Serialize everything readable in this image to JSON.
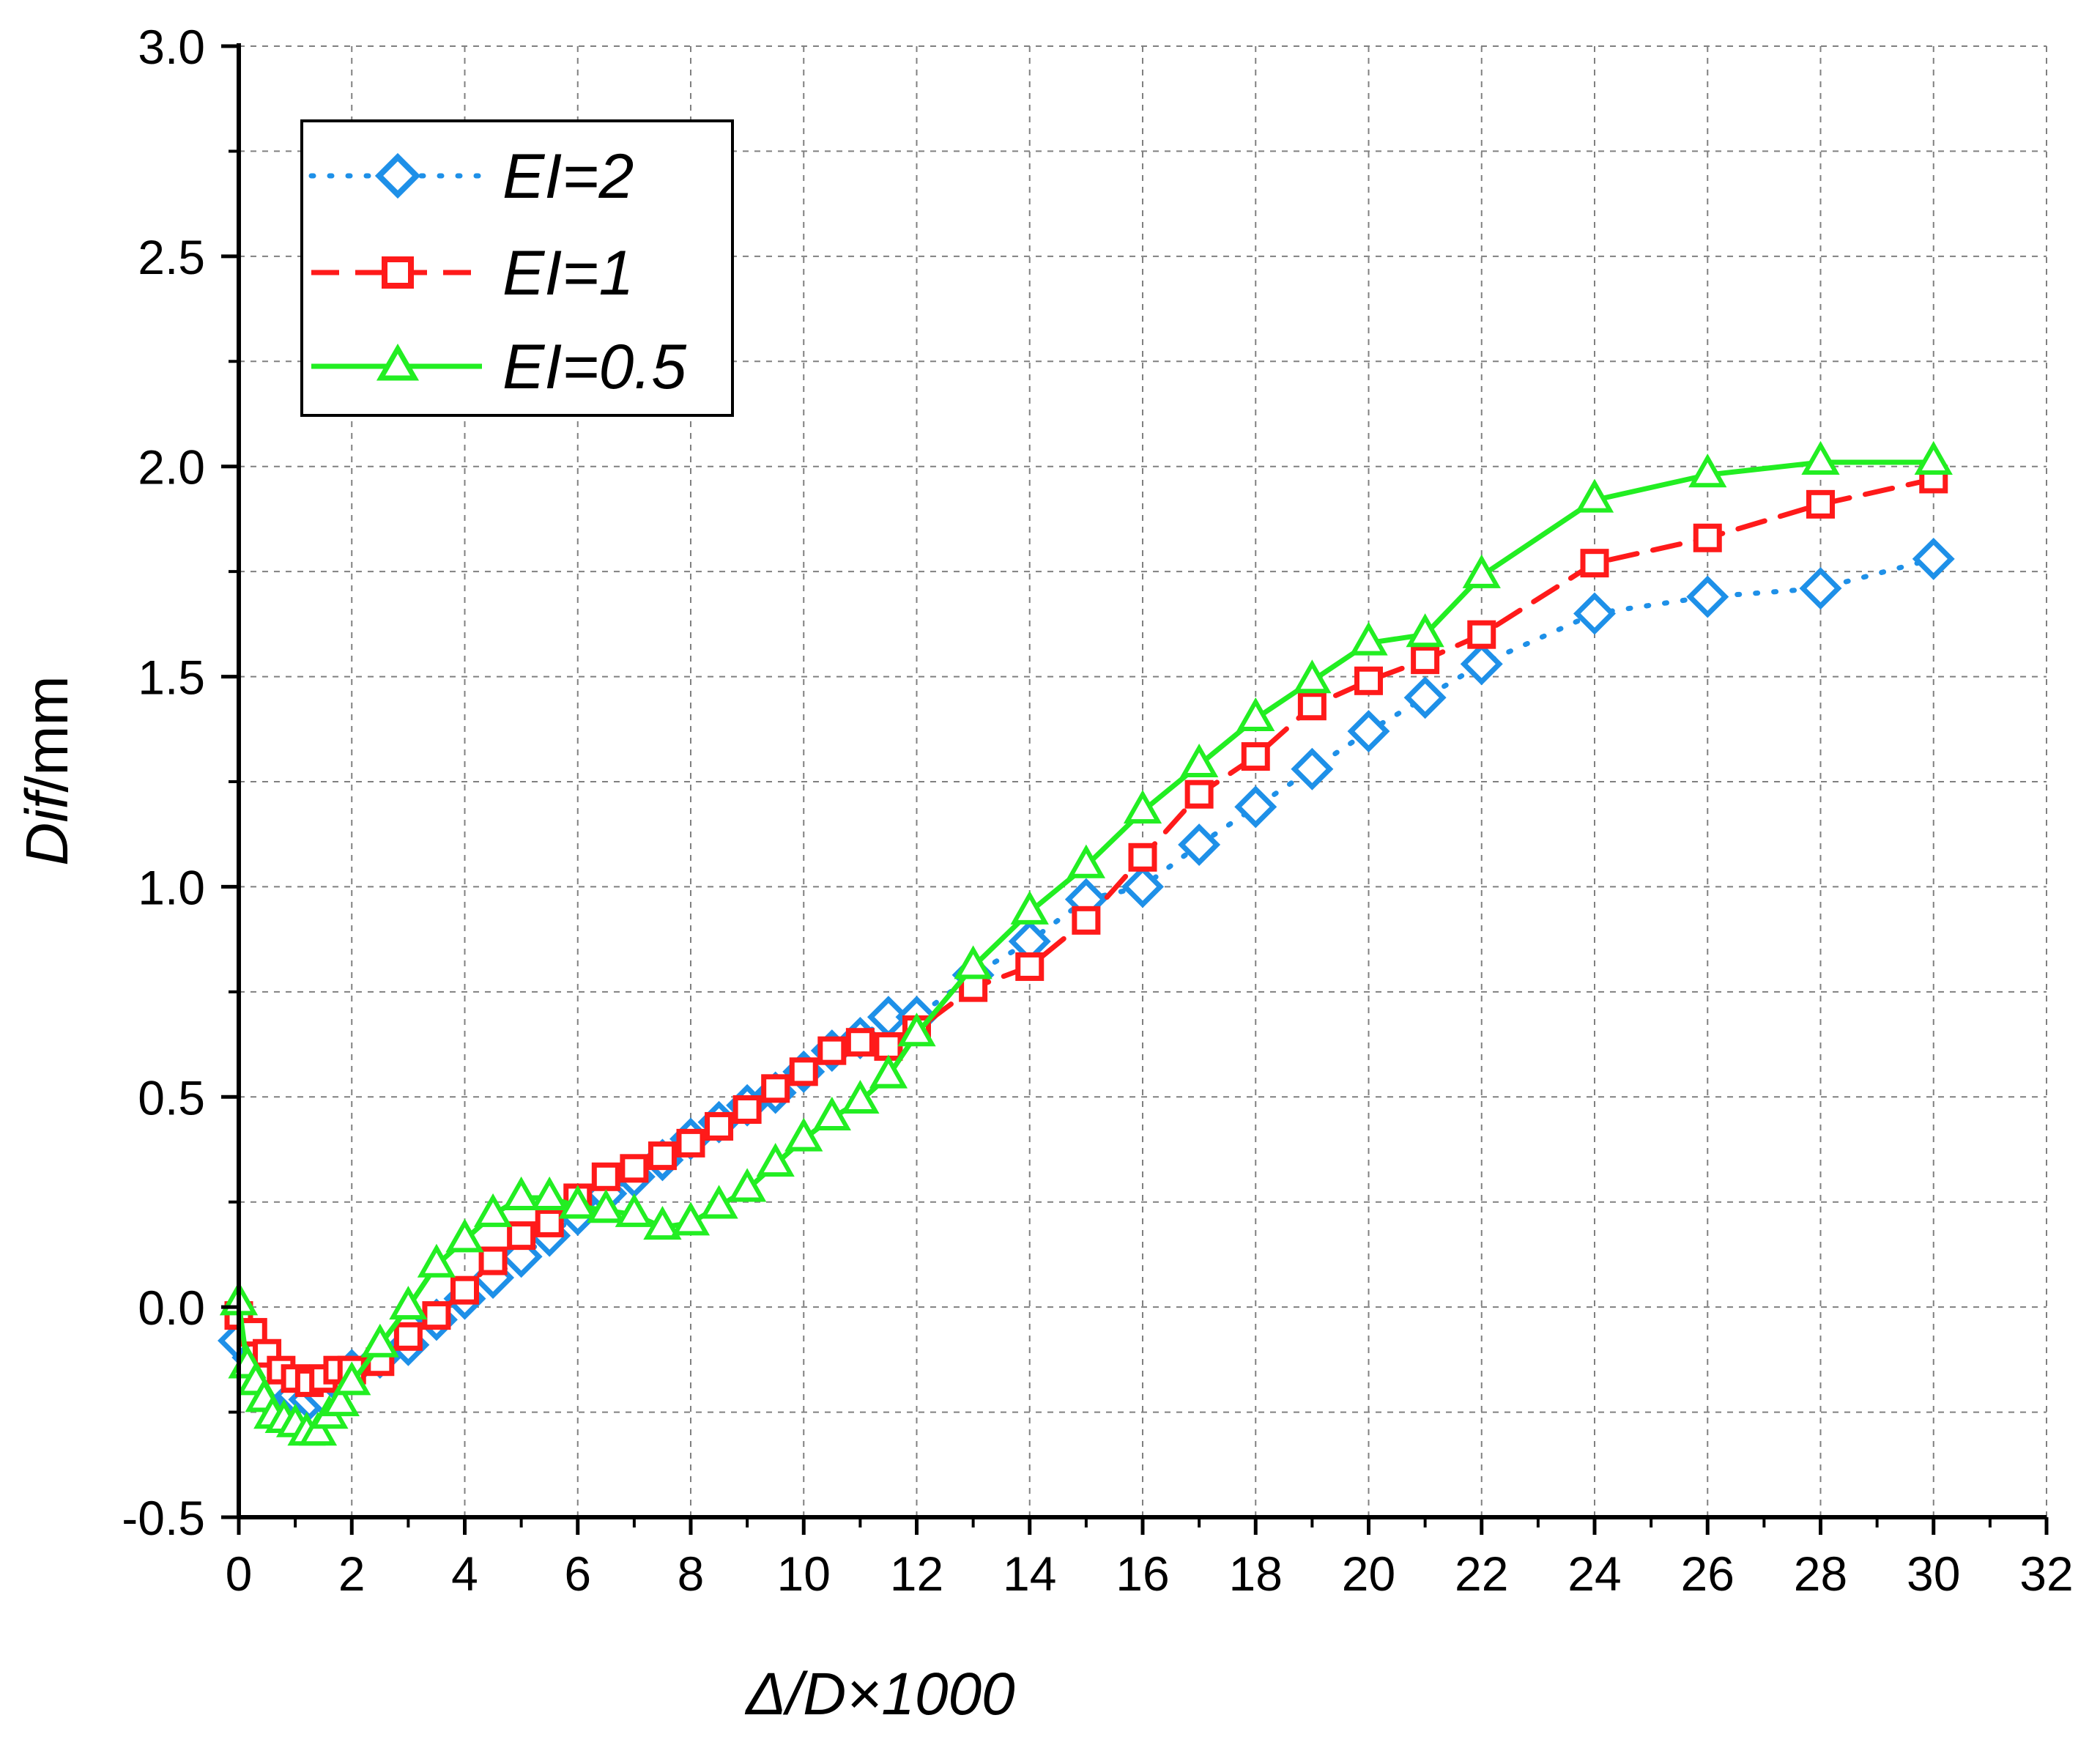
{
  "chart_data": {
    "type": "line",
    "xlabel": "Δ/D×1000",
    "ylabel": "Dif/mm",
    "ylabel_italic": "Dif",
    "ylabel_unit": "/mm",
    "xlim": [
      0,
      32
    ],
    "ylim": [
      -0.5,
      3.0
    ],
    "xticks": [
      0,
      2,
      4,
      6,
      8,
      10,
      12,
      14,
      16,
      18,
      20,
      22,
      24,
      26,
      28,
      30,
      32
    ],
    "xtick_labels": [
      "0",
      "2",
      "4",
      "6",
      "8",
      "10",
      "12",
      "14",
      "16",
      "18",
      "20",
      "22",
      "24",
      "26",
      "28",
      "30",
      "32"
    ],
    "yticks": [
      -0.5,
      0.0,
      0.5,
      1.0,
      1.5,
      2.0,
      2.5,
      3.0
    ],
    "ytick_labels": [
      "-0.5",
      "0.0",
      "0.5",
      "1.0",
      "1.5",
      "2.0",
      "2.5",
      "3.0"
    ],
    "grid": true,
    "legend_position": "top-left",
    "series": [
      {
        "name": "EI=2",
        "color": "#1e90e8",
        "line": "dotted",
        "marker": "diamond",
        "x": [
          0,
          0.25,
          0.5,
          0.75,
          1.0,
          1.25,
          1.5,
          1.75,
          2.0,
          2.5,
          3.0,
          3.5,
          4.0,
          4.5,
          5.0,
          5.5,
          6.0,
          6.5,
          7.0,
          7.5,
          8.0,
          8.5,
          9.0,
          9.5,
          10.0,
          10.5,
          11.0,
          11.5,
          12.0,
          13,
          14,
          15,
          16,
          17,
          18,
          19,
          20,
          21,
          22,
          24,
          26,
          28,
          30
        ],
        "y": [
          -0.08,
          -0.12,
          -0.16,
          -0.19,
          -0.21,
          -0.22,
          -0.21,
          -0.18,
          -0.15,
          -0.12,
          -0.09,
          -0.03,
          0.02,
          0.07,
          0.12,
          0.17,
          0.22,
          0.27,
          0.31,
          0.35,
          0.4,
          0.44,
          0.48,
          0.51,
          0.56,
          0.61,
          0.64,
          0.69,
          0.69,
          0.79,
          0.87,
          0.97,
          1.0,
          1.1,
          1.19,
          1.28,
          1.37,
          1.45,
          1.53,
          1.65,
          1.69,
          1.71,
          1.78
        ]
      },
      {
        "name": "EI=1",
        "color": "#ff1a1a",
        "line": "dashed",
        "marker": "square",
        "x": [
          0,
          0.25,
          0.5,
          0.75,
          1.0,
          1.25,
          1.5,
          1.75,
          2.0,
          2.5,
          3.0,
          3.5,
          4.0,
          4.5,
          5.0,
          5.5,
          6.0,
          6.5,
          7.0,
          7.5,
          8.0,
          8.5,
          9.0,
          9.5,
          10.0,
          10.5,
          11.0,
          11.5,
          12.0,
          13,
          14,
          15,
          16,
          17,
          18,
          19,
          20,
          21,
          22,
          24,
          26,
          28,
          30
        ],
        "y": [
          -0.02,
          -0.06,
          -0.11,
          -0.15,
          -0.17,
          -0.18,
          -0.17,
          -0.15,
          -0.15,
          -0.13,
          -0.07,
          -0.02,
          0.04,
          0.11,
          0.17,
          0.2,
          0.26,
          0.31,
          0.33,
          0.36,
          0.39,
          0.43,
          0.47,
          0.52,
          0.56,
          0.61,
          0.63,
          0.62,
          0.66,
          0.76,
          0.81,
          0.92,
          1.07,
          1.22,
          1.31,
          1.43,
          1.49,
          1.54,
          1.6,
          1.77,
          1.83,
          1.91,
          1.97
        ]
      },
      {
        "name": "EI=0.5",
        "color": "#22ee22",
        "line": "solid",
        "marker": "triangle",
        "x": [
          0,
          0.15,
          0.3,
          0.45,
          0.6,
          0.8,
          1.0,
          1.2,
          1.4,
          1.6,
          1.8,
          2.0,
          2.5,
          3.0,
          3.5,
          4.0,
          4.5,
          5.0,
          5.5,
          6.0,
          6.5,
          7.0,
          7.5,
          8.0,
          8.5,
          9.0,
          9.5,
          10.0,
          10.5,
          11.0,
          11.5,
          12.0,
          13,
          14,
          15,
          16,
          17,
          18,
          19,
          20,
          21,
          22,
          24,
          26,
          28,
          30
        ],
        "y": [
          0.01,
          -0.14,
          -0.18,
          -0.22,
          -0.26,
          -0.27,
          -0.28,
          -0.3,
          -0.3,
          -0.26,
          -0.23,
          -0.18,
          -0.09,
          0.0,
          0.1,
          0.16,
          0.22,
          0.26,
          0.26,
          0.24,
          0.23,
          0.22,
          0.19,
          0.2,
          0.24,
          0.28,
          0.34,
          0.4,
          0.45,
          0.49,
          0.55,
          0.65,
          0.81,
          0.94,
          1.05,
          1.18,
          1.29,
          1.4,
          1.49,
          1.58,
          1.6,
          1.74,
          1.92,
          1.98,
          2.01,
          2.01
        ]
      }
    ]
  }
}
